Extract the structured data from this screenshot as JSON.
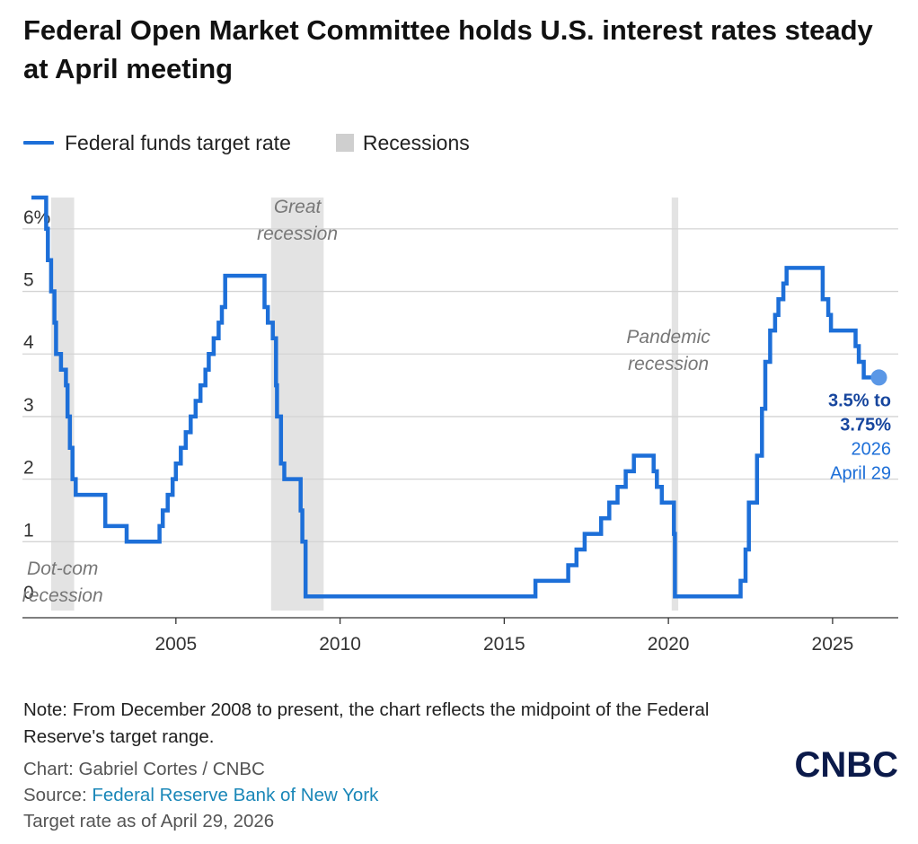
{
  "title": "Federal Open Market Committee holds U.S. interest rates steady at April meeting",
  "legend": {
    "line_label": "Federal funds target rate",
    "band_label": "Recessions",
    "line_color": "#1d6fd8",
    "band_color": "#e3e3e3"
  },
  "chart_data": {
    "type": "line",
    "xlim": [
      2000.6,
      2027.0
    ],
    "ylim": [
      -0.1,
      6.5
    ],
    "x_ticks": [
      2005,
      2010,
      2015,
      2020,
      2025
    ],
    "x_tick_labels": [
      "2005",
      "2010",
      "2015",
      "2020",
      "2025"
    ],
    "y_ticks": [
      0,
      1,
      2,
      3,
      4,
      5,
      6
    ],
    "y_tick_labels": [
      "0",
      "1",
      "2",
      "3",
      "4",
      "5",
      "6%"
    ],
    "recessions": [
      {
        "start": 2001.2,
        "end": 2001.9,
        "label": [
          "Dot-com",
          "recession"
        ]
      },
      {
        "start": 2007.9,
        "end": 2009.5,
        "label": [
          "Great",
          "recession"
        ]
      },
      {
        "start": 2020.1,
        "end": 2020.3,
        "label": [
          "Pandemic",
          "recession"
        ]
      }
    ],
    "series": [
      {
        "name": "Federal funds target rate",
        "step": true,
        "points": [
          [
            2000.6,
            6.5
          ],
          [
            2001.05,
            6.0
          ],
          [
            2001.1,
            5.5
          ],
          [
            2001.2,
            5.0
          ],
          [
            2001.3,
            4.5
          ],
          [
            2001.35,
            4.0
          ],
          [
            2001.5,
            3.75
          ],
          [
            2001.65,
            3.5
          ],
          [
            2001.7,
            3.0
          ],
          [
            2001.77,
            2.5
          ],
          [
            2001.85,
            2.0
          ],
          [
            2001.95,
            1.75
          ],
          [
            2002.85,
            1.25
          ],
          [
            2003.5,
            1.0
          ],
          [
            2004.5,
            1.25
          ],
          [
            2004.6,
            1.5
          ],
          [
            2004.75,
            1.75
          ],
          [
            2004.9,
            2.0
          ],
          [
            2005.0,
            2.25
          ],
          [
            2005.15,
            2.5
          ],
          [
            2005.3,
            2.75
          ],
          [
            2005.45,
            3.0
          ],
          [
            2005.6,
            3.25
          ],
          [
            2005.75,
            3.5
          ],
          [
            2005.9,
            3.75
          ],
          [
            2006.0,
            4.0
          ],
          [
            2006.15,
            4.25
          ],
          [
            2006.3,
            4.5
          ],
          [
            2006.4,
            4.75
          ],
          [
            2006.5,
            5.25
          ],
          [
            2007.7,
            4.75
          ],
          [
            2007.8,
            4.5
          ],
          [
            2007.95,
            4.25
          ],
          [
            2008.05,
            3.5
          ],
          [
            2008.08,
            3.0
          ],
          [
            2008.2,
            2.25
          ],
          [
            2008.3,
            2.0
          ],
          [
            2008.8,
            1.5
          ],
          [
            2008.85,
            1.0
          ],
          [
            2008.95,
            0.125
          ],
          [
            2015.95,
            0.375
          ],
          [
            2016.95,
            0.625
          ],
          [
            2017.2,
            0.875
          ],
          [
            2017.45,
            1.125
          ],
          [
            2017.95,
            1.375
          ],
          [
            2018.2,
            1.625
          ],
          [
            2018.45,
            1.875
          ],
          [
            2018.7,
            2.125
          ],
          [
            2018.95,
            2.375
          ],
          [
            2019.55,
            2.125
          ],
          [
            2019.65,
            1.875
          ],
          [
            2019.8,
            1.625
          ],
          [
            2020.17,
            1.125
          ],
          [
            2020.2,
            0.125
          ],
          [
            2022.2,
            0.375
          ],
          [
            2022.35,
            0.875
          ],
          [
            2022.45,
            1.625
          ],
          [
            2022.7,
            2.375
          ],
          [
            2022.85,
            3.125
          ],
          [
            2022.95,
            3.875
          ],
          [
            2023.1,
            4.375
          ],
          [
            2023.25,
            4.625
          ],
          [
            2023.35,
            4.875
          ],
          [
            2023.5,
            5.125
          ],
          [
            2023.6,
            5.375
          ],
          [
            2024.7,
            4.875
          ],
          [
            2024.87,
            4.625
          ],
          [
            2024.95,
            4.375
          ],
          [
            2025.7,
            4.125
          ],
          [
            2025.8,
            3.875
          ],
          [
            2025.95,
            3.625
          ],
          [
            2026.33,
            3.625
          ]
        ]
      }
    ],
    "last_value": {
      "range_line1": "3.5% to",
      "range_line2": "3.75%",
      "year": "2026",
      "date": "April 29"
    }
  },
  "note": "Note: From December 2008 to present, the chart reflects the midpoint of the Federal Reserve's target range.",
  "credits": {
    "chart_by": "Chart: Gabriel Cortes / CNBC",
    "source_prefix": "Source: ",
    "source_link": "Federal Reserve Bank of New York",
    "as_of": "Target rate as of April 29, 2026"
  },
  "logo": "CNBC"
}
